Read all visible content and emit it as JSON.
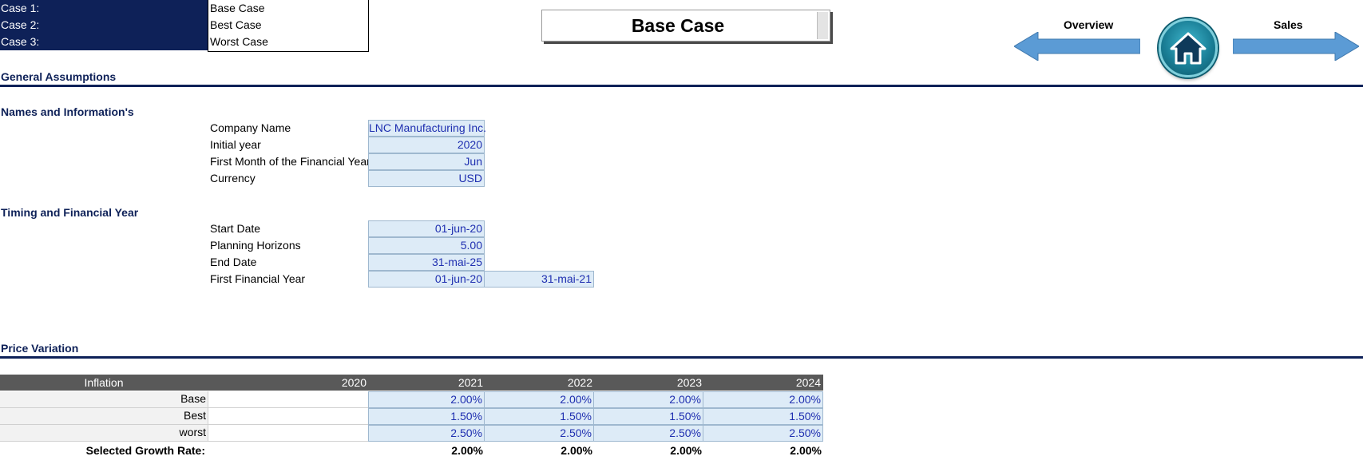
{
  "case_selector": {
    "rows": [
      {
        "label": "Case 1:",
        "value": "Base Case"
      },
      {
        "label": "Case 2:",
        "value": "Best Case"
      },
      {
        "label": "Case 3:",
        "value": "Worst Case"
      }
    ]
  },
  "title": "Base Case",
  "nav": {
    "prev_label": "Overview",
    "next_label": "Sales",
    "arrow_color": "#5b9bd5",
    "home_icon": "home-icon"
  },
  "sections": {
    "general": "General Assumptions",
    "names": "Names and  Information's",
    "timing": "Timing and Financial Year",
    "price": "Price Variation"
  },
  "names_info": [
    {
      "label": "Company Name",
      "value": "LNC Manufacturing Inc."
    },
    {
      "label": "Initial year",
      "value": "2020"
    },
    {
      "label": "First Month of the Financial Year",
      "value": "Jun"
    },
    {
      "label": "Currency",
      "value": "USD"
    }
  ],
  "timing": [
    {
      "label": "Start Date",
      "value": "01-jun-20"
    },
    {
      "label": "Planning Horizons",
      "value": "5.00"
    },
    {
      "label": "End Date",
      "value": "31-mai-25"
    },
    {
      "label": "First Financial Year",
      "value": "01-jun-20",
      "value2": "31-mai-21"
    }
  ],
  "inflation": {
    "header": [
      "Inflation",
      "2020",
      "2021",
      "2022",
      "2023",
      "2024"
    ],
    "rows": [
      {
        "label": "Base",
        "values": [
          "2.00%",
          "2.00%",
          "2.00%",
          "2.00%"
        ]
      },
      {
        "label": "Best",
        "values": [
          "1.50%",
          "1.50%",
          "1.50%",
          "1.50%"
        ]
      },
      {
        "label": "worst",
        "values": [
          "2.50%",
          "2.50%",
          "2.50%",
          "2.50%"
        ]
      }
    ],
    "selected": {
      "label": "Selected Growth Rate:",
      "values": [
        "2.00%",
        "2.00%",
        "2.00%",
        "2.00%"
      ]
    }
  },
  "colors": {
    "navy": "#0e2158",
    "input_fill": "#ddebf7",
    "input_text": "#1f2fb0",
    "table_header": "#595959"
  }
}
